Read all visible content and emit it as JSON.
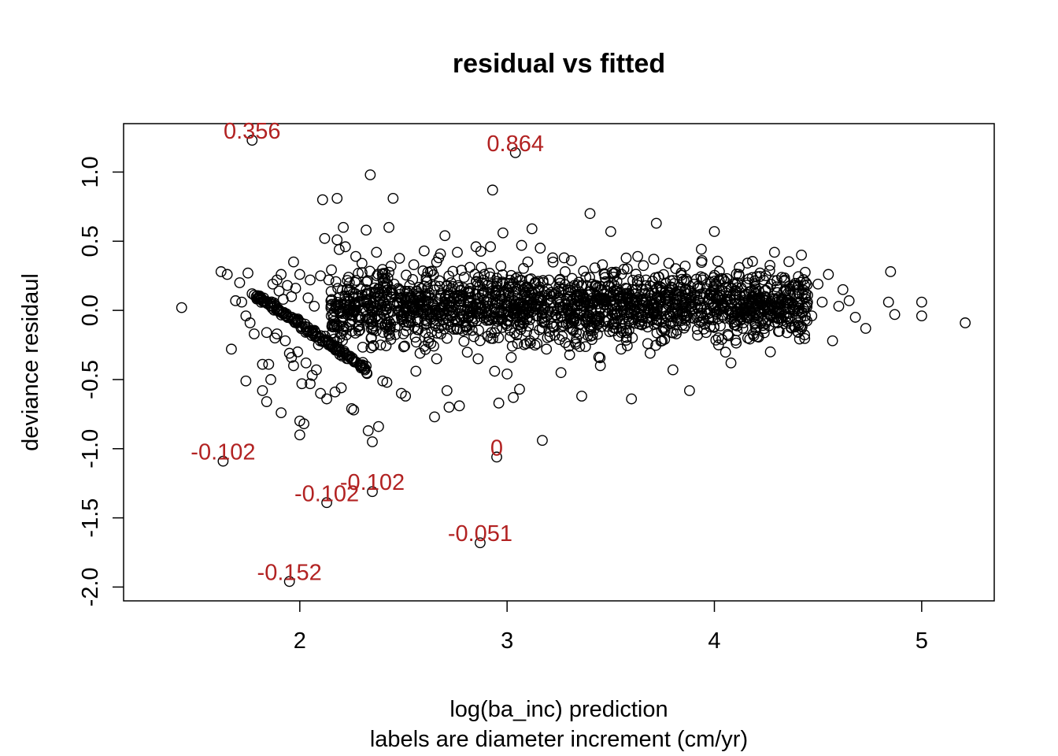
{
  "chart_data": {
    "type": "scatter",
    "title": "residual vs fitted",
    "xlabel": "log(ba_inc) prediction",
    "xlabel2": "labels are diameter increment (cm/yr)",
    "ylabel": "deviance residaul",
    "xlim": [
      1.15,
      5.35
    ],
    "ylim": [
      -2.1,
      1.35
    ],
    "xticks": [
      2,
      3,
      4,
      5
    ],
    "yticks": [
      -2.0,
      -1.5,
      -1.0,
      -0.5,
      0.0,
      0.5,
      1.0
    ],
    "xtick_labels": [
      "2",
      "3",
      "4",
      "5"
    ],
    "ytick_labels": [
      "-2.0",
      "-1.5",
      "-1.0",
      "-0.5",
      "0.0",
      "0.5",
      "1.0"
    ],
    "grid": false,
    "legend": "none",
    "point_color": "#000000",
    "label_color": "#b22222",
    "labeled_points": [
      {
        "x": 1.77,
        "y": 1.23,
        "label": "0.356"
      },
      {
        "x": 3.04,
        "y": 1.14,
        "label": "0.864"
      },
      {
        "x": 1.63,
        "y": -1.09,
        "label": "-0.102"
      },
      {
        "x": 2.95,
        "y": -1.06,
        "label": "0"
      },
      {
        "x": 2.35,
        "y": -1.31,
        "label": "-0.102"
      },
      {
        "x": 2.13,
        "y": -1.39,
        "label": "-0.102"
      },
      {
        "x": 2.87,
        "y": -1.68,
        "label": "-0.051"
      },
      {
        "x": 1.95,
        "y": -1.96,
        "label": "-0.152"
      }
    ],
    "points": [
      [
        1.43,
        0.02
      ],
      [
        1.62,
        0.28
      ],
      [
        1.65,
        0.26
      ],
      [
        1.67,
        -0.28
      ],
      [
        1.69,
        0.07
      ],
      [
        1.71,
        0.2
      ],
      [
        1.72,
        0.06
      ],
      [
        1.74,
        -0.04
      ],
      [
        1.74,
        -0.51
      ],
      [
        1.75,
        0.27
      ],
      [
        1.76,
        -0.09
      ],
      [
        1.77,
        0.12
      ],
      [
        1.78,
        -0.17
      ],
      [
        1.78,
        0.11
      ],
      [
        1.79,
        0.1
      ],
      [
        1.8,
        0.09
      ],
      [
        1.81,
        0.08
      ],
      [
        1.82,
        -0.39
      ],
      [
        1.82,
        -0.58
      ],
      [
        1.83,
        0.06
      ],
      [
        1.84,
        -0.16
      ],
      [
        1.84,
        -0.66
      ],
      [
        1.85,
        -0.39
      ],
      [
        1.86,
        0.05
      ],
      [
        1.86,
        -0.5
      ],
      [
        1.87,
        0.19
      ],
      [
        1.88,
        -0.2
      ],
      [
        1.89,
        0.22
      ],
      [
        1.89,
        -0.17
      ],
      [
        1.9,
        0.14
      ],
      [
        1.9,
        -0.01
      ],
      [
        1.91,
        0.26
      ],
      [
        1.91,
        -0.74
      ],
      [
        1.92,
        0.08
      ],
      [
        1.93,
        -0.22
      ],
      [
        1.94,
        0.18
      ],
      [
        1.95,
        -0.31
      ],
      [
        1.96,
        0.1
      ],
      [
        1.96,
        -0.34
      ],
      [
        1.97,
        0.35
      ],
      [
        1.97,
        -0.4
      ],
      [
        1.98,
        0.16
      ],
      [
        1.99,
        -0.3
      ],
      [
        2.0,
        0.26
      ],
      [
        2.0,
        -0.9
      ],
      [
        2.0,
        -0.8
      ],
      [
        2.01,
        -0.53
      ],
      [
        2.02,
        -0.82
      ],
      [
        2.03,
        -0.38
      ],
      [
        2.04,
        0.09
      ],
      [
        2.05,
        0.22
      ],
      [
        2.05,
        -0.53
      ],
      [
        2.06,
        -0.47
      ],
      [
        2.07,
        0.03
      ],
      [
        2.08,
        -0.43
      ],
      [
        2.09,
        -0.25
      ],
      [
        2.1,
        0.25
      ],
      [
        2.1,
        -0.6
      ],
      [
        2.11,
        0.8
      ],
      [
        2.12,
        0.52
      ],
      [
        2.13,
        -0.64
      ],
      [
        2.14,
        0.22
      ],
      [
        2.15,
        0.07
      ],
      [
        2.16,
        -0.12
      ],
      [
        2.17,
        -0.59
      ],
      [
        2.18,
        0.81
      ],
      [
        2.18,
        0.51
      ],
      [
        2.19,
        0.44
      ],
      [
        2.2,
        -0.08
      ],
      [
        2.2,
        -0.56
      ],
      [
        2.21,
        0.6
      ],
      [
        2.22,
        0.46
      ],
      [
        2.23,
        -0.03
      ],
      [
        2.24,
        0.15
      ],
      [
        2.25,
        -0.71
      ],
      [
        2.26,
        -0.72
      ],
      [
        2.27,
        0.39
      ],
      [
        2.28,
        -0.12
      ],
      [
        2.29,
        -0.14
      ],
      [
        2.3,
        0.34
      ],
      [
        2.31,
        0.06
      ],
      [
        2.32,
        0.58
      ],
      [
        2.33,
        -0.87
      ],
      [
        2.34,
        0.98
      ],
      [
        2.35,
        -0.95
      ],
      [
        2.36,
        0.12
      ],
      [
        2.37,
        0.42
      ],
      [
        2.38,
        -0.84
      ],
      [
        2.39,
        -0.25
      ],
      [
        2.4,
        -0.51
      ],
      [
        2.41,
        0.23
      ],
      [
        2.42,
        -0.52
      ],
      [
        2.43,
        0.6
      ],
      [
        2.44,
        0.32
      ],
      [
        2.45,
        0.81
      ],
      [
        2.46,
        -0.12
      ],
      [
        2.47,
        0.06
      ],
      [
        2.48,
        0.15
      ],
      [
        2.49,
        -0.6
      ],
      [
        2.5,
        -0.17
      ],
      [
        2.51,
        -0.62
      ],
      [
        2.52,
        0.03
      ],
      [
        2.53,
        0.18
      ],
      [
        2.55,
        0.33
      ],
      [
        2.56,
        -0.44
      ],
      [
        2.57,
        0.12
      ],
      [
        2.58,
        -0.31
      ],
      [
        2.6,
        0.43
      ],
      [
        2.61,
        0.07
      ],
      [
        2.62,
        -0.23
      ],
      [
        2.63,
        0.28
      ],
      [
        2.65,
        -0.77
      ],
      [
        2.66,
        -0.35
      ],
      [
        2.67,
        0.38
      ],
      [
        2.68,
        0.12
      ],
      [
        2.7,
        0.54
      ],
      [
        2.71,
        -0.58
      ],
      [
        2.72,
        -0.7
      ],
      [
        2.73,
        0.2
      ],
      [
        2.75,
        -0.06
      ],
      [
        2.76,
        0.42
      ],
      [
        2.77,
        -0.69
      ],
      [
        2.78,
        0.29
      ],
      [
        2.8,
        -0.11
      ],
      [
        2.81,
        0.13
      ],
      [
        2.82,
        0.06
      ],
      [
        2.84,
        -0.19
      ],
      [
        2.85,
        0.46
      ],
      [
        2.86,
        -0.35
      ],
      [
        2.88,
        0.12
      ],
      [
        2.89,
        0.26
      ],
      [
        2.9,
        -0.05
      ],
      [
        2.92,
        0.46
      ],
      [
        2.93,
        0.87
      ],
      [
        2.94,
        -0.44
      ],
      [
        2.95,
        0.05
      ],
      [
        2.96,
        -0.67
      ],
      [
        2.97,
        0.32
      ],
      [
        2.98,
        0.56
      ],
      [
        3.0,
        -0.46
      ],
      [
        3.01,
        0.13
      ],
      [
        3.02,
        -0.34
      ],
      [
        3.03,
        -0.63
      ],
      [
        3.05,
        0.24
      ],
      [
        3.06,
        -0.57
      ],
      [
        3.07,
        0.47
      ],
      [
        3.08,
        -0.09
      ],
      [
        3.1,
        0.35
      ],
      [
        3.11,
        -0.22
      ],
      [
        3.12,
        0.59
      ],
      [
        3.14,
        -0.04
      ],
      [
        3.15,
        0.21
      ],
      [
        3.16,
        0.45
      ],
      [
        3.17,
        -0.94
      ],
      [
        3.19,
        -0.28
      ],
      [
        3.2,
        0.08
      ],
      [
        3.22,
        0.38
      ],
      [
        3.23,
        -0.18
      ],
      [
        3.25,
        0.14
      ],
      [
        3.26,
        -0.45
      ],
      [
        3.28,
        0.28
      ],
      [
        3.3,
        -0.03
      ],
      [
        3.31,
        0.36
      ],
      [
        3.33,
        -0.23
      ],
      [
        3.35,
        0.11
      ],
      [
        3.36,
        -0.62
      ],
      [
        3.38,
        0.24
      ],
      [
        3.4,
        0.7
      ],
      [
        3.41,
        -0.06
      ],
      [
        3.43,
        0.18
      ],
      [
        3.45,
        -0.4
      ],
      [
        3.46,
        0.33
      ],
      [
        3.48,
        0.04
      ],
      [
        3.5,
        0.57
      ],
      [
        3.51,
        -0.15
      ],
      [
        3.53,
        0.21
      ],
      [
        3.55,
        -0.28
      ],
      [
        3.56,
        0.09
      ],
      [
        3.58,
        0.3
      ],
      [
        3.6,
        -0.64
      ],
      [
        3.62,
        0.12
      ],
      [
        3.63,
        0.39
      ],
      [
        3.65,
        -0.07
      ],
      [
        3.67,
        0.22
      ],
      [
        3.69,
        -0.31
      ],
      [
        3.7,
        0.05
      ],
      [
        3.72,
        0.63
      ],
      [
        3.74,
        0.17
      ],
      [
        3.76,
        -0.21
      ],
      [
        3.78,
        0.34
      ],
      [
        3.8,
        -0.43
      ],
      [
        3.82,
        0.08
      ],
      [
        3.84,
        0.27
      ],
      [
        3.86,
        -0.11
      ],
      [
        3.88,
        -0.58
      ],
      [
        3.9,
        0.19
      ],
      [
        3.92,
        0.02
      ],
      [
        3.94,
        0.36
      ],
      [
        3.96,
        -0.16
      ],
      [
        3.98,
        0.11
      ],
      [
        4.0,
        0.57
      ],
      [
        4.02,
        -0.25
      ],
      [
        4.04,
        0.04
      ],
      [
        4.06,
        0.23
      ],
      [
        4.08,
        -0.38
      ],
      [
        4.1,
        0.14
      ],
      [
        4.12,
        0.31
      ],
      [
        4.14,
        -0.09
      ],
      [
        4.16,
        0.2
      ],
      [
        4.18,
        0.06
      ],
      [
        4.2,
        -0.14
      ],
      [
        4.22,
        0.27
      ],
      [
        4.25,
        0.09
      ],
      [
        4.27,
        -0.3
      ],
      [
        4.3,
        0.17
      ],
      [
        4.32,
        -0.02
      ],
      [
        4.34,
        0.22
      ],
      [
        4.36,
        0.05
      ],
      [
        4.39,
        -0.12
      ],
      [
        4.42,
        0.4
      ],
      [
        4.45,
        0.11
      ],
      [
        4.47,
        -0.04
      ],
      [
        4.5,
        0.19
      ],
      [
        4.52,
        0.06
      ],
      [
        4.55,
        0.26
      ],
      [
        4.57,
        -0.22
      ],
      [
        4.6,
        0.03
      ],
      [
        4.62,
        0.15
      ],
      [
        4.65,
        0.07
      ],
      [
        4.68,
        -0.05
      ],
      [
        4.73,
        -0.13
      ],
      [
        4.84,
        0.06
      ],
      [
        4.85,
        0.28
      ],
      [
        4.87,
        -0.03
      ],
      [
        5.0,
        0.06
      ],
      [
        5.0,
        -0.04
      ],
      [
        5.21,
        -0.09
      ]
    ]
  }
}
